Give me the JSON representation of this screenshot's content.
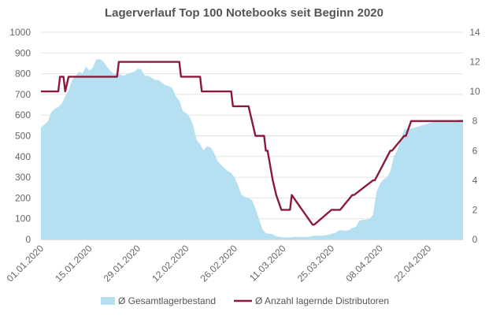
{
  "chart_data": {
    "type": "area+line",
    "title": "Lagerverlauf Top 100 Notebooks seit Beginn 2020",
    "x_tick_labels": [
      "01.01.2020",
      "15.01.2020",
      "29.01.2020",
      "12.02.2020",
      "26.02.2020",
      "11.03.2020",
      "25.03.2020",
      "08.04.2020",
      "22.04.2020"
    ],
    "x_range_days": [
      0,
      122
    ],
    "y_left": {
      "ylim": [
        0,
        1000
      ],
      "ticks": [
        0,
        100,
        200,
        300,
        400,
        500,
        600,
        700,
        800,
        900,
        1000
      ]
    },
    "y_right": {
      "ylim": [
        0,
        14
      ],
      "ticks": [
        0,
        2,
        4,
        6,
        8,
        10,
        12,
        14
      ]
    },
    "grid": true,
    "legend_position": "bottom",
    "series": [
      {
        "name": "Ø Gesamtlagerbestand",
        "kind": "area",
        "axis": "left",
        "color": "#b5e0f2",
        "x": [
          0,
          1,
          2,
          3,
          4,
          5,
          6,
          7,
          8,
          9,
          10,
          11,
          12,
          13,
          14,
          15,
          16,
          17,
          18,
          19,
          20,
          21,
          22,
          23,
          24,
          25,
          26,
          27,
          28,
          29,
          30,
          31,
          32,
          33,
          34,
          35,
          36,
          37,
          38,
          39,
          40,
          41,
          42,
          43,
          44,
          45,
          46,
          47,
          48,
          49,
          50,
          51,
          52,
          53,
          54,
          55,
          56,
          57,
          58,
          59,
          60,
          61,
          62,
          63,
          64,
          65,
          66,
          67,
          68,
          69,
          70,
          71,
          72,
          73,
          74,
          75,
          76,
          77,
          78,
          79,
          80,
          81,
          82,
          83,
          84,
          85,
          86,
          87,
          88,
          89,
          90,
          91,
          92,
          93,
          94,
          95,
          96,
          97,
          98,
          99,
          100,
          101,
          102,
          103,
          104,
          105,
          106,
          107,
          108,
          109,
          110,
          111,
          112,
          113,
          114,
          115,
          116,
          117,
          118,
          119,
          120,
          121,
          122
        ],
        "values": [
          540,
          555,
          570,
          615,
          630,
          640,
          655,
          690,
          720,
          770,
          790,
          810,
          800,
          835,
          815,
          830,
          870,
          870,
          860,
          835,
          815,
          800,
          800,
          795,
          790,
          800,
          805,
          810,
          825,
          820,
          790,
          790,
          780,
          770,
          770,
          755,
          745,
          740,
          730,
          690,
          670,
          620,
          610,
          590,
          550,
          480,
          460,
          430,
          450,
          445,
          420,
          380,
          360,
          345,
          330,
          320,
          300,
          260,
          215,
          205,
          200,
          190,
          150,
          100,
          50,
          30,
          28,
          25,
          15,
          12,
          10,
          10,
          10,
          12,
          12,
          12,
          12,
          12,
          15,
          18,
          18,
          18,
          20,
          22,
          28,
          30,
          42,
          45,
          42,
          45,
          55,
          60,
          90,
          95,
          95,
          100,
          120,
          230,
          270,
          290,
          300,
          330,
          400,
          430,
          480,
          530,
          535,
          535,
          540,
          545,
          550,
          555,
          560,
          565,
          570,
          570,
          570,
          575,
          575,
          575,
          575,
          578,
          580
        ]
      },
      {
        "name": "Ø Anzahl lagernde Distributoren",
        "kind": "line",
        "axis": "right",
        "color": "#8b1a3a",
        "x": [
          0,
          5,
          5.5,
          6.5,
          7,
          8,
          8.5,
          22,
          22.5,
          40,
          40.5,
          46,
          46.5,
          55,
          55.5,
          60,
          61,
          62,
          64.5,
          65,
          65.5,
          67,
          68,
          69.5,
          70,
          72,
          72.5,
          78.5,
          79,
          84,
          84.5,
          86,
          86.5,
          90,
          90.5,
          96,
          96.5,
          101,
          101.5,
          105,
          105.5,
          107,
          107.5,
          108,
          108.5,
          122
        ],
        "values": [
          10,
          10,
          11,
          11,
          10,
          11,
          11,
          11,
          12,
          12,
          11,
          11,
          10,
          10,
          9,
          9,
          8,
          7,
          7,
          6,
          6,
          4,
          3,
          2,
          2,
          2,
          3,
          1,
          1,
          2,
          2,
          2,
          2,
          3,
          3,
          4,
          4,
          6,
          6,
          7,
          7,
          8,
          8,
          8,
          8,
          8
        ]
      }
    ]
  }
}
